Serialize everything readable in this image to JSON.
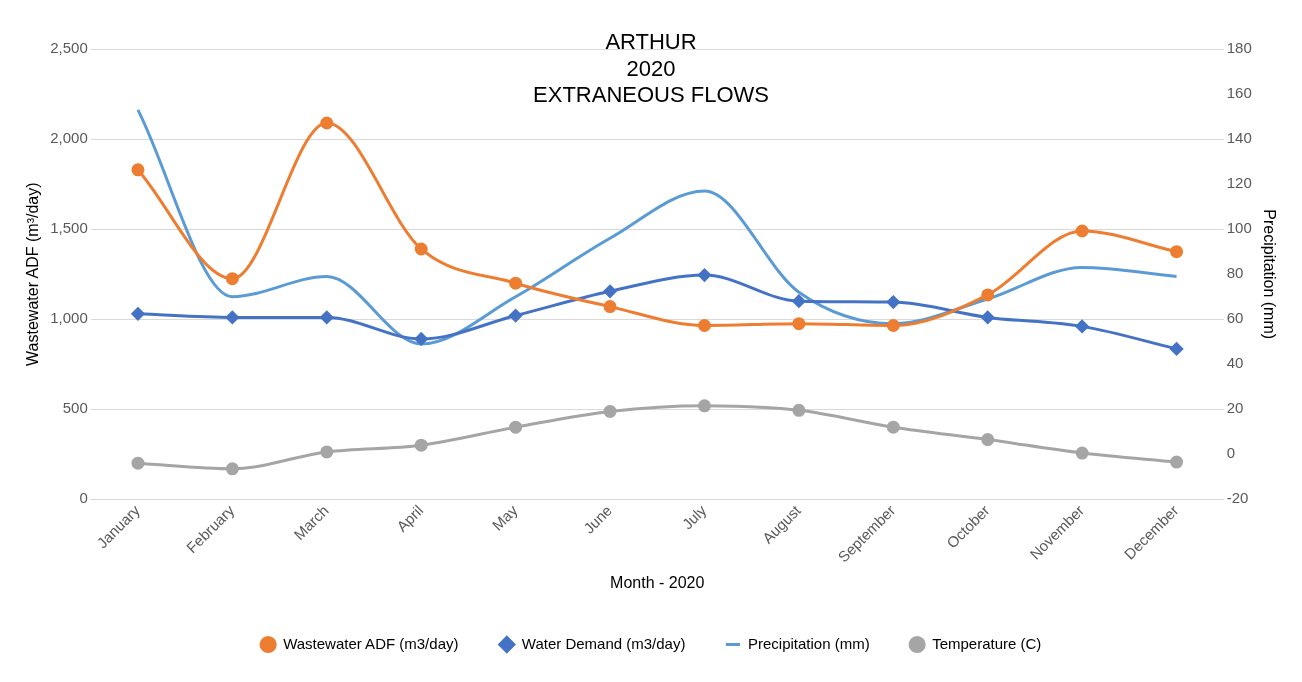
{
  "chart_data": {
    "type": "line",
    "title": "ARTHUR\n2020\nEXTRANEOUS FLOWS",
    "xlabel": "Month - 2020",
    "ylabel": "Wastewater ADF (m³/day)",
    "y2label": "Precipitation (mm)",
    "categories": [
      "January",
      "February",
      "March",
      "April",
      "May",
      "June",
      "July",
      "August",
      "September",
      "October",
      "November",
      "December"
    ],
    "series": [
      {
        "name": "Wastewater ADF (m3/day)",
        "color": "#ed7d31",
        "marker": "circle",
        "values": [
          1830,
          1225,
          2090,
          1390,
          1200,
          1070,
          965,
          975,
          965,
          1135,
          1490,
          1375
        ]
      },
      {
        "name": "Water Demand (m3/day)",
        "color": "#4472c4",
        "marker": "diamond",
        "values": [
          1030,
          1010,
          1010,
          890,
          1020,
          1155,
          1245,
          1100,
          1095,
          1010,
          960,
          835
        ]
      },
      {
        "name": "Precipitation (mm)",
        "color": "#5b9bd5",
        "marker": "none",
        "axis": "y2",
        "values": [
          153,
          70,
          79,
          49,
          70,
          96,
          117,
          72,
          58,
          69,
          83,
          79
        ]
      },
      {
        "name": "Temperature (C)",
        "color": "#a5a5a5",
        "marker": "circle",
        "axis": "y2",
        "values": [
          -4,
          -6.5,
          1,
          4,
          12,
          19,
          21.5,
          19.5,
          12,
          6.5,
          0.5,
          -3.5
        ]
      }
    ],
    "ylim": [
      0,
      2500
    ],
    "yticks": [
      0,
      500,
      {
        "value": 1000,
        "label": "1,000"
      },
      {
        "value": 1500,
        "label": "1,500"
      },
      {
        "value": 2000,
        "label": "2,000"
      },
      {
        "value": 2500,
        "label": "2,500"
      }
    ],
    "y2lim": [
      -20,
      180
    ],
    "y2ticks": [
      -20,
      0,
      20,
      40,
      60,
      80,
      100,
      120,
      140,
      160,
      180
    ],
    "grid": "y",
    "legend": "bottom"
  }
}
